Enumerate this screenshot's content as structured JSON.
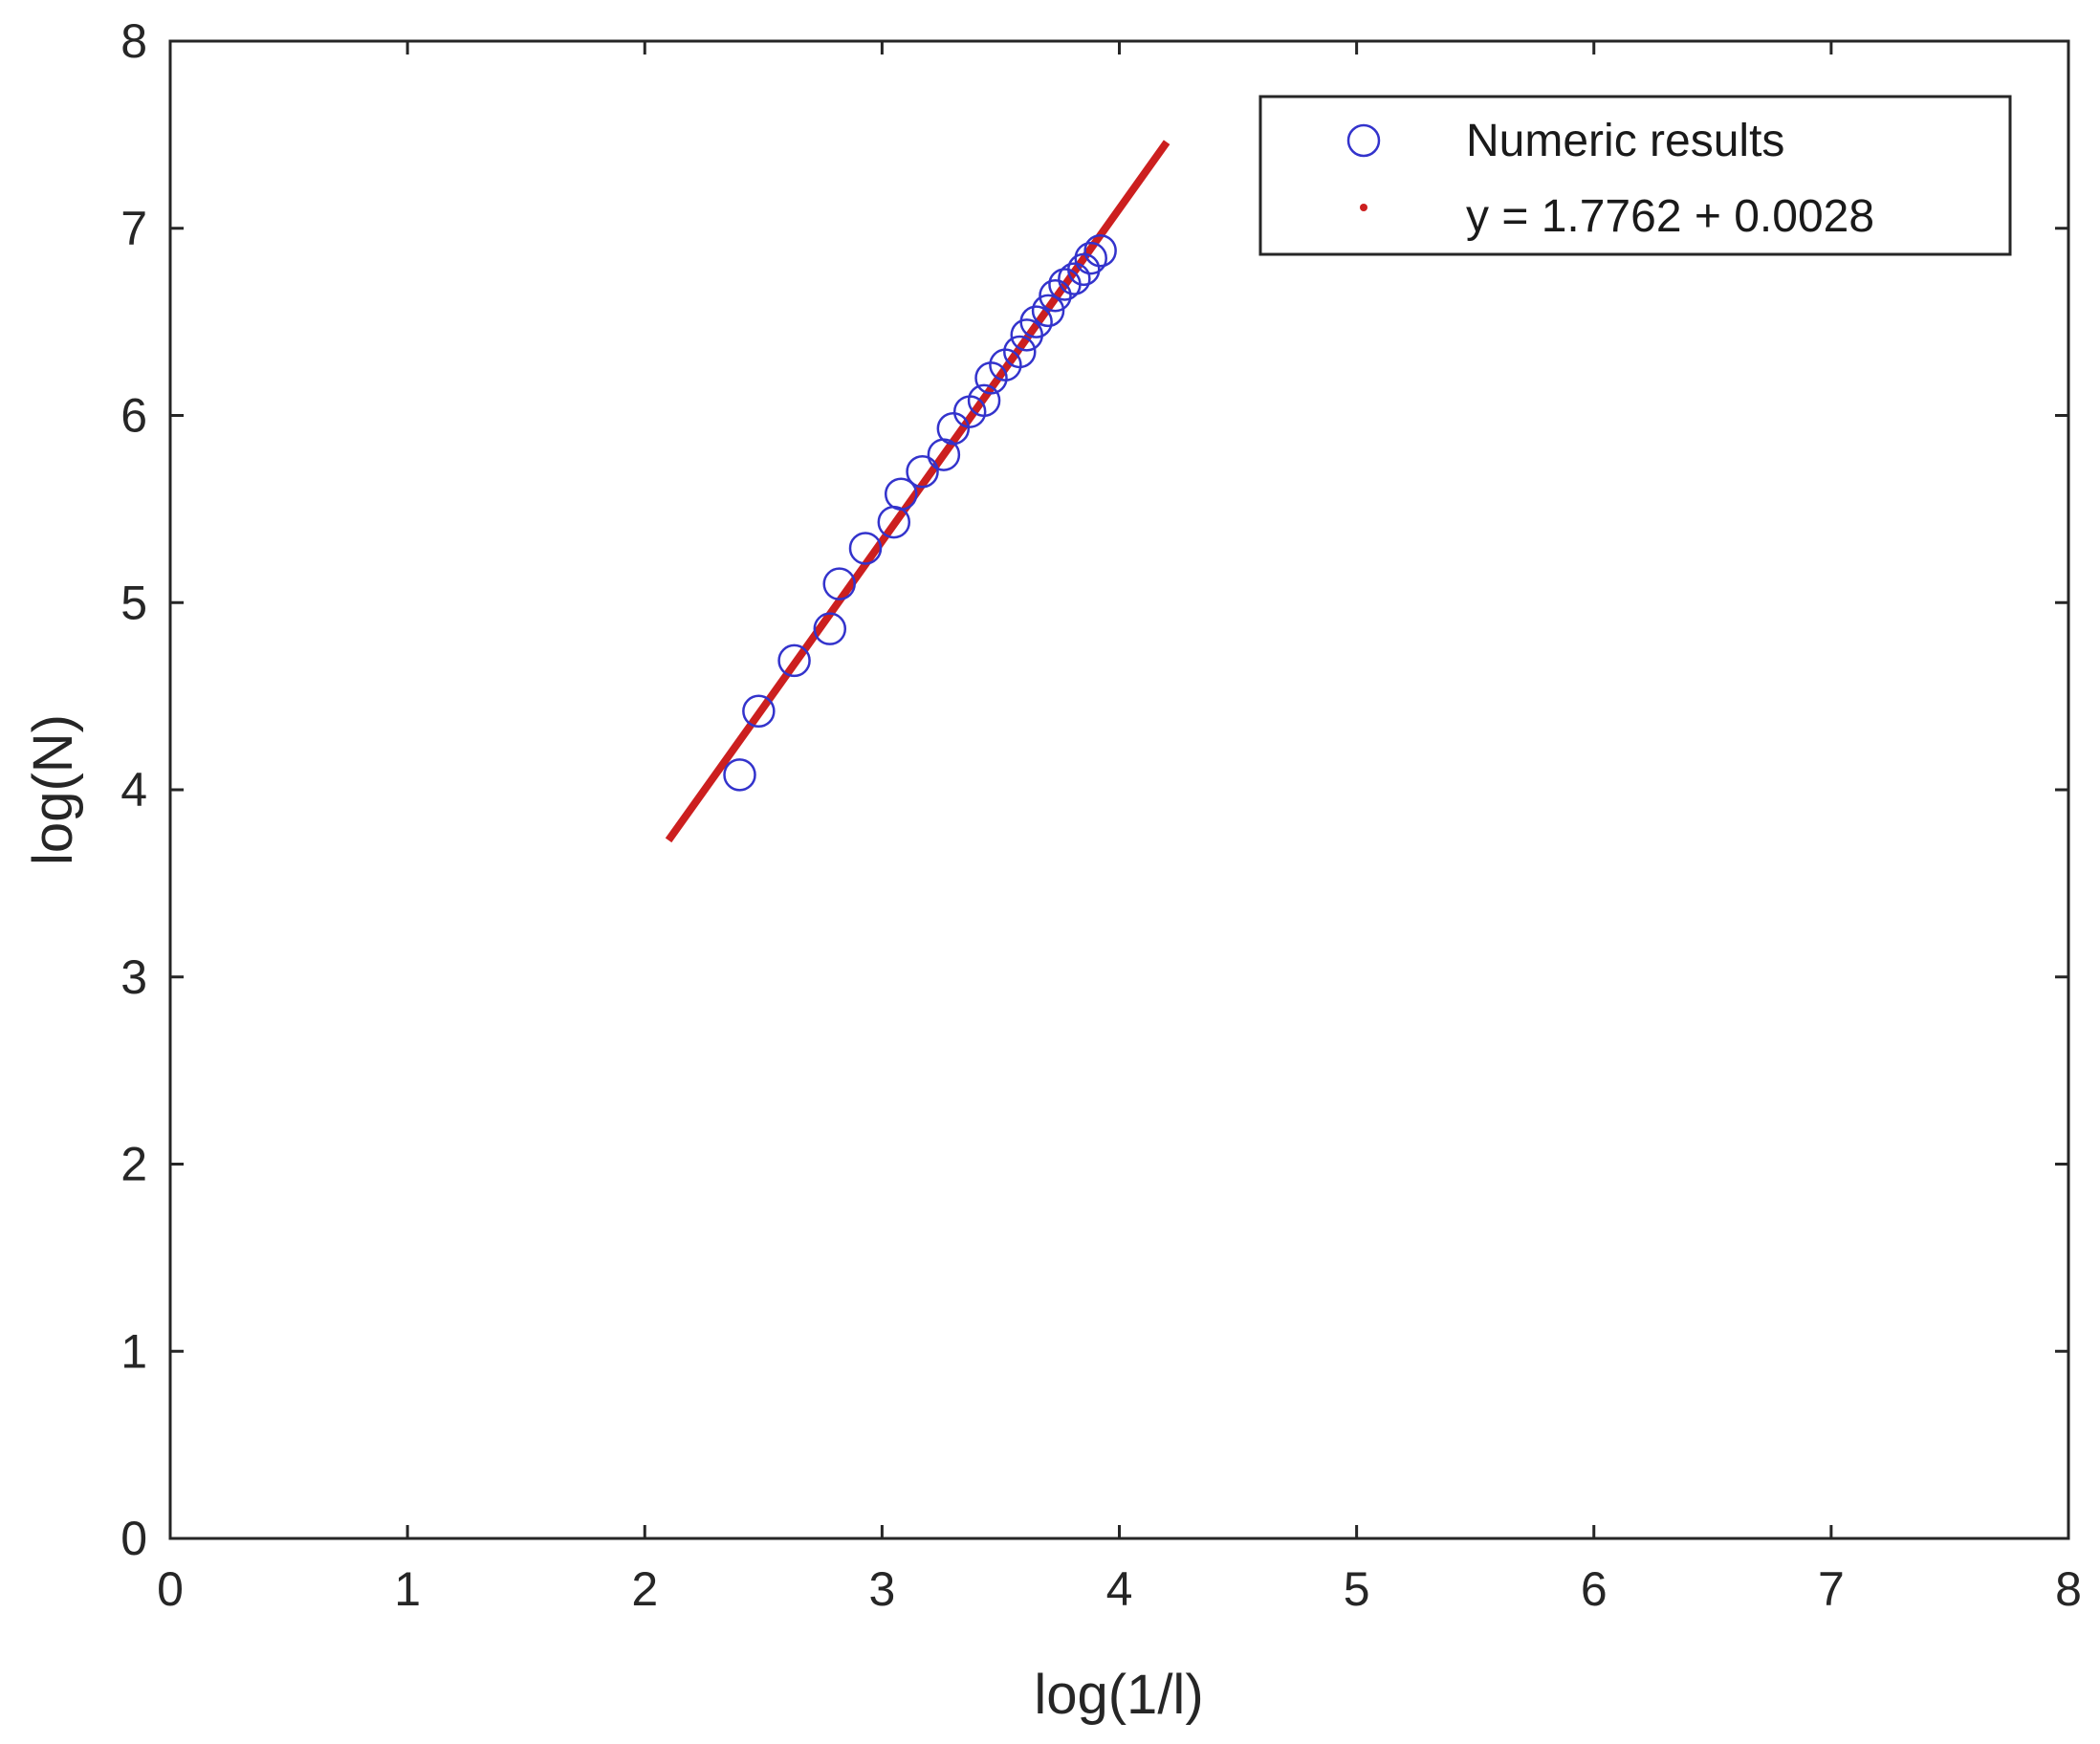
{
  "chart_data": {
    "type": "scatter",
    "xlabel": "log(1/l)",
    "ylabel": "log(N)",
    "xlim": [
      0,
      8
    ],
    "ylim": [
      0,
      8
    ],
    "xticks": [
      "0",
      "1",
      "2",
      "3",
      "4",
      "5",
      "6",
      "7",
      "8"
    ],
    "yticks": [
      "0",
      "1",
      "2",
      "3",
      "4",
      "5",
      "6",
      "7",
      "8"
    ],
    "grid": false,
    "legend_position": "top-right",
    "series": [
      {
        "name": "Numeric results",
        "kind": "scatter",
        "marker": "circle",
        "color": "#3333cc",
        "points": [
          [
            2.4,
            4.08
          ],
          [
            2.48,
            4.42
          ],
          [
            2.63,
            4.69
          ],
          [
            2.78,
            4.86
          ],
          [
            2.82,
            5.1
          ],
          [
            2.93,
            5.29
          ],
          [
            3.05,
            5.43
          ],
          [
            3.08,
            5.58
          ],
          [
            3.17,
            5.7
          ],
          [
            3.26,
            5.79
          ],
          [
            3.3,
            5.93
          ],
          [
            3.37,
            6.02
          ],
          [
            3.43,
            6.08
          ],
          [
            3.46,
            6.2
          ],
          [
            3.52,
            6.27
          ],
          [
            3.58,
            6.34
          ],
          [
            3.61,
            6.43
          ],
          [
            3.65,
            6.5
          ],
          [
            3.7,
            6.56
          ],
          [
            3.73,
            6.64
          ],
          [
            3.77,
            6.7
          ],
          [
            3.81,
            6.73
          ],
          [
            3.85,
            6.78
          ],
          [
            3.88,
            6.84
          ],
          [
            3.92,
            6.88
          ]
        ]
      },
      {
        "name": "y = 1.7762 + 0.0028",
        "kind": "line",
        "color": "#cc1f1f",
        "x": [
          2.1,
          4.2
        ],
        "y": [
          3.73,
          7.46
        ]
      }
    ]
  }
}
